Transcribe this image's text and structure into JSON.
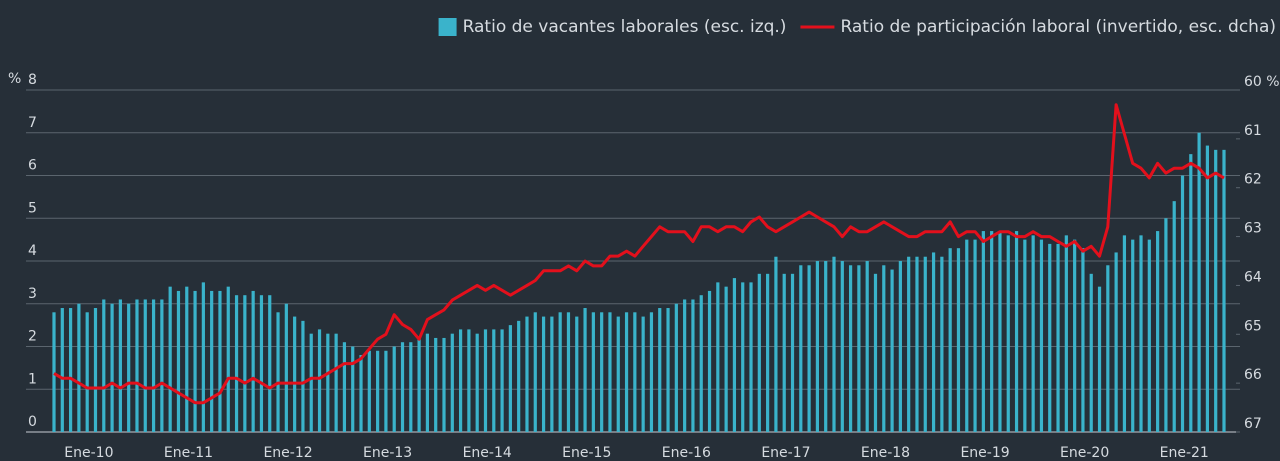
{
  "chart_data": {
    "type": "bar",
    "categories": [
      null,
      null,
      null,
      "Ene-10",
      null,
      null,
      null,
      null,
      null,
      null,
      null,
      null,
      null,
      null,
      null,
      "Ene-11",
      null,
      null,
      null,
      null,
      null,
      null,
      null,
      null,
      null,
      null,
      null,
      "Ene-12",
      null,
      null,
      null,
      null,
      null,
      null,
      null,
      null,
      null,
      null,
      null,
      "Ene-13",
      null,
      null,
      null,
      null,
      null,
      null,
      null,
      null,
      null,
      null,
      null,
      "Ene-14",
      null,
      null,
      null,
      null,
      null,
      null,
      null,
      null,
      null,
      null,
      null,
      "Ene-15",
      null,
      null,
      null,
      null,
      null,
      null,
      null,
      null,
      null,
      null,
      null,
      "Ene-16",
      null,
      null,
      null,
      null,
      null,
      null,
      null,
      null,
      null,
      null,
      null,
      "Ene-17",
      null,
      null,
      null,
      null,
      null,
      null,
      null,
      null,
      null,
      null,
      null,
      "Ene-18",
      null,
      null,
      null,
      null,
      null,
      null,
      null,
      null,
      null,
      null,
      null,
      "Ene-19",
      null,
      null,
      null,
      null,
      null,
      null,
      null,
      null,
      null,
      null,
      null,
      "Ene-20",
      null,
      null,
      null,
      null,
      null,
      null,
      null,
      null,
      null,
      null,
      null,
      "Ene-21",
      null,
      null,
      null,
      null,
      null,
      null
    ],
    "series": [
      {
        "name": "Ratio de vacantes laborales (esc. izq.)",
        "type": "bar",
        "color": "#3ab3cb",
        "values": [
          2.8,
          2.9,
          2.9,
          3.0,
          2.8,
          2.9,
          3.1,
          3.0,
          3.1,
          3.0,
          3.1,
          3.1,
          3.1,
          3.1,
          3.4,
          3.3,
          3.4,
          3.3,
          3.5,
          3.3,
          3.3,
          3.4,
          3.2,
          3.2,
          3.3,
          3.2,
          3.2,
          2.8,
          3.0,
          2.7,
          2.6,
          2.3,
          2.4,
          2.3,
          2.3,
          2.1,
          2.0,
          1.8,
          1.9,
          1.9,
          1.9,
          2.0,
          2.1,
          2.1,
          2.2,
          2.3,
          2.2,
          2.2,
          2.3,
          2.4,
          2.4,
          2.3,
          2.4,
          2.4,
          2.4,
          2.5,
          2.6,
          2.7,
          2.8,
          2.7,
          2.7,
          2.8,
          2.8,
          2.7,
          2.9,
          2.8,
          2.8,
          2.8,
          2.7,
          2.8,
          2.8,
          2.7,
          2.8,
          2.9,
          2.9,
          3.0,
          3.1,
          3.1,
          3.2,
          3.3,
          3.5,
          3.4,
          3.6,
          3.5,
          3.5,
          3.7,
          3.7,
          4.1,
          3.7,
          3.7,
          3.9,
          3.9,
          4.0,
          4.0,
          4.1,
          4.0,
          3.9,
          3.9,
          4.0,
          3.7,
          3.9,
          3.8,
          4.0,
          4.1,
          4.1,
          4.1,
          4.2,
          4.1,
          4.3,
          4.3,
          4.5,
          4.5,
          4.7,
          4.7,
          4.7,
          4.6,
          4.7,
          4.5,
          4.6,
          4.5,
          4.4,
          4.4,
          4.6,
          4.5,
          4.3,
          3.7,
          3.4,
          3.9,
          4.2,
          4.6,
          4.5,
          4.6,
          4.5,
          4.7,
          5.0,
          5.4,
          6.0,
          6.5,
          7.0,
          6.7,
          6.6,
          6.6
        ]
      },
      {
        "name": "Ratio de participación laboral (invertido, esc. dcha)",
        "type": "line",
        "axis": "y2",
        "color": "#e3101c",
        "values": [
          65.8,
          65.9,
          65.9,
          66.0,
          66.1,
          66.1,
          66.1,
          66.0,
          66.1,
          66.0,
          66.0,
          66.1,
          66.1,
          66.0,
          66.1,
          66.2,
          66.3,
          66.4,
          66.4,
          66.3,
          66.2,
          65.9,
          65.9,
          66.0,
          65.9,
          66.0,
          66.1,
          66.0,
          66.0,
          66.0,
          66.0,
          65.9,
          65.9,
          65.8,
          65.7,
          65.6,
          65.6,
          65.5,
          65.3,
          65.1,
          65.0,
          64.6,
          64.8,
          64.9,
          65.1,
          64.7,
          64.6,
          64.5,
          64.3,
          64.2,
          64.1,
          64.0,
          64.1,
          64.0,
          64.1,
          64.2,
          64.1,
          64.0,
          63.9,
          63.7,
          63.7,
          63.7,
          63.6,
          63.7,
          63.5,
          63.6,
          63.6,
          63.4,
          63.4,
          63.3,
          63.4,
          63.2,
          63.0,
          62.8,
          62.9,
          62.9,
          62.9,
          63.1,
          62.8,
          62.8,
          62.9,
          62.8,
          62.8,
          62.9,
          62.7,
          62.6,
          62.8,
          62.9,
          62.8,
          62.7,
          62.6,
          62.5,
          62.6,
          62.7,
          62.8,
          63.0,
          62.8,
          62.9,
          62.9,
          62.8,
          62.7,
          62.8,
          62.9,
          63.0,
          63.0,
          62.9,
          62.9,
          62.9,
          62.7,
          63.0,
          62.9,
          62.9,
          63.1,
          63.0,
          62.9,
          62.9,
          63.0,
          63.0,
          62.9,
          63.0,
          63.0,
          63.1,
          63.2,
          63.1,
          63.3,
          63.2,
          63.4,
          62.8,
          60.3,
          60.9,
          61.5,
          61.6,
          61.8,
          61.5,
          61.7,
          61.6,
          61.6,
          61.5,
          61.6,
          61.8,
          61.7,
          61.8
        ]
      }
    ],
    "y_unit": "%",
    "ylim": [
      0,
      8
    ],
    "yticks": [
      0,
      1,
      2,
      3,
      4,
      5,
      6,
      7,
      8
    ],
    "y2lim": [
      60,
      67
    ],
    "y2_inverted": true,
    "y2ticks": [
      {
        "value": 60,
        "label": "60 %"
      },
      61,
      62,
      63,
      64,
      65,
      66,
      67
    ],
    "grid": true,
    "legend": "top-right"
  }
}
